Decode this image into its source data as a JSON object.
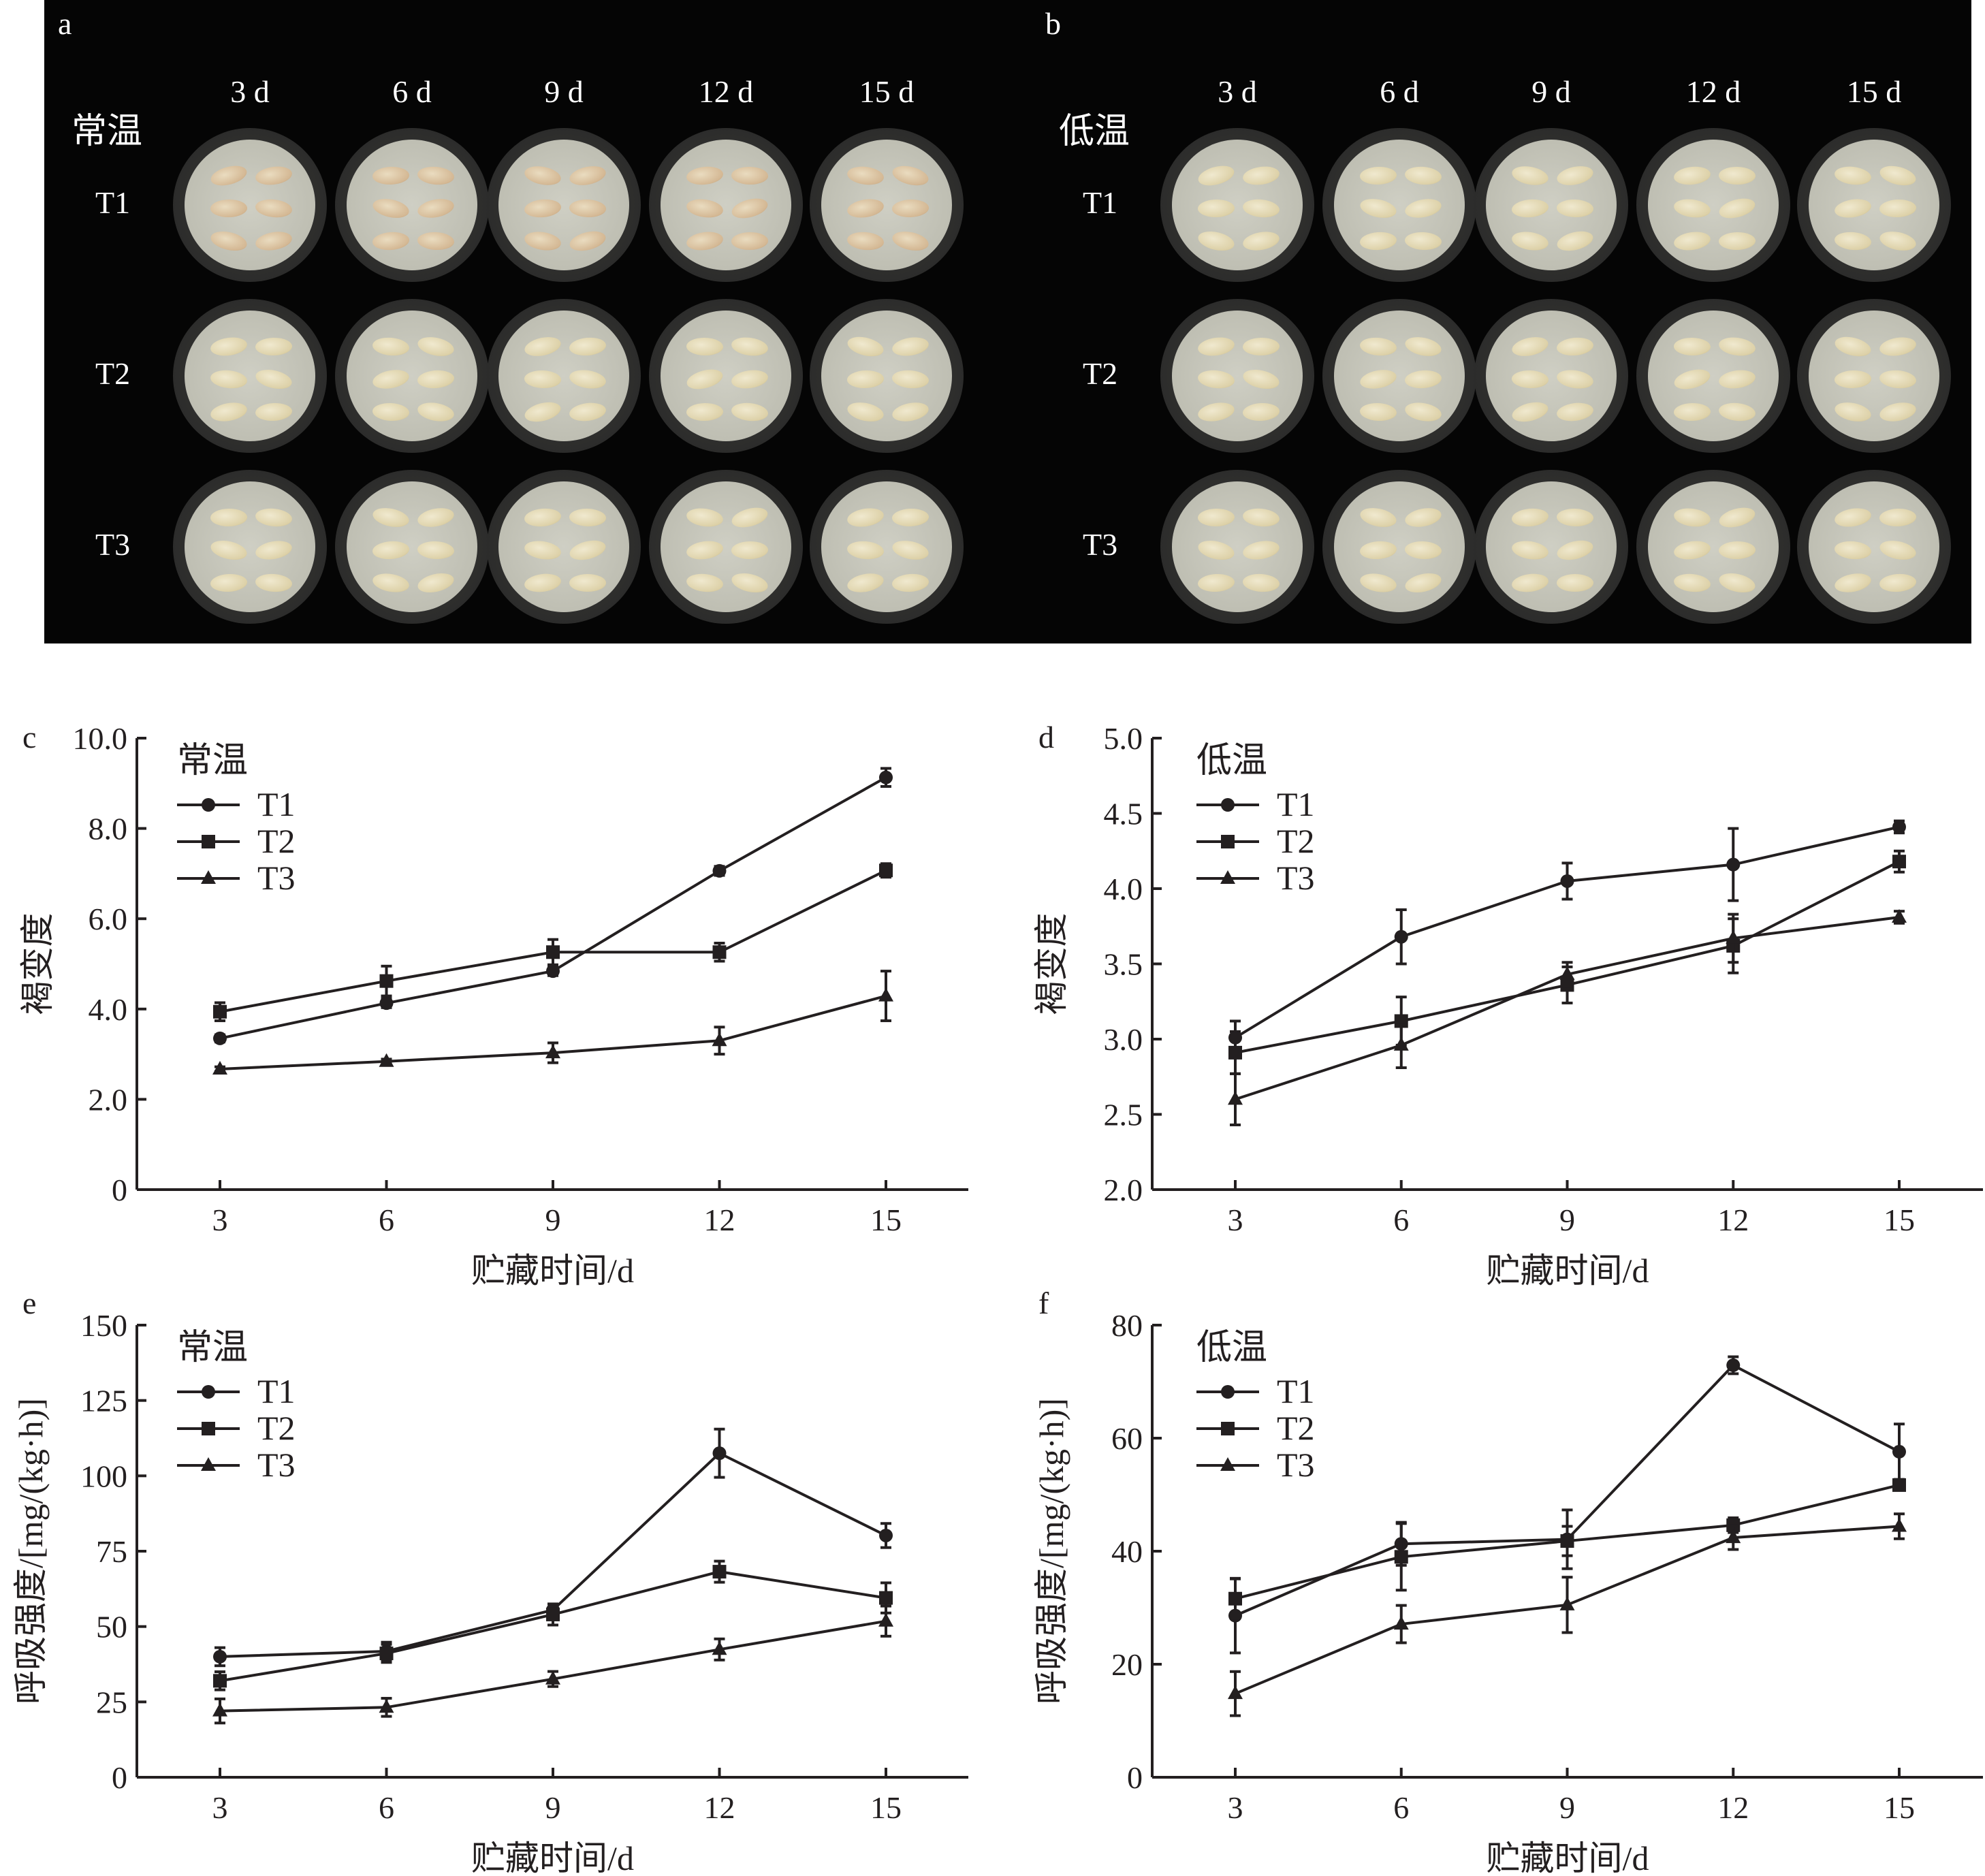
{
  "photo_panels": [
    {
      "letter": "a",
      "condition": "常温",
      "days": [
        "3 d",
        "6 d",
        "9 d",
        "12 d",
        "15 d"
      ],
      "rows": [
        "T1",
        "T2",
        "T3"
      ]
    },
    {
      "letter": "b",
      "condition": "低温",
      "days": [
        "3 d",
        "6 d",
        "9 d",
        "12 d",
        "15 d"
      ],
      "rows": [
        "T1",
        "T2",
        "T3"
      ]
    }
  ],
  "chart_data": [
    {
      "panel": "c",
      "type": "line",
      "legend_title": "常温",
      "xlabel": "贮藏时间/d",
      "ylabel": "褐变度",
      "x": [
        3,
        6,
        9,
        12,
        15
      ],
      "xticks": [
        "3",
        "6",
        "9",
        "12",
        "15"
      ],
      "ylim": [
        0,
        10
      ],
      "yticks": [
        "0",
        "2.0",
        "4.0",
        "6.0",
        "8.0",
        "10.0"
      ],
      "ytick_values": [
        0,
        2,
        4,
        6,
        8,
        10
      ],
      "grid": false,
      "legend": "top-left",
      "series": [
        {
          "name": "T1",
          "marker": "circle",
          "values": [
            3.35,
            4.13,
            4.84,
            7.06,
            9.13
          ],
          "errors": [
            0.08,
            0.1,
            0.1,
            0.1,
            0.2
          ]
        },
        {
          "name": "T2",
          "marker": "square",
          "values": [
            3.94,
            4.62,
            5.26,
            5.26,
            7.07
          ],
          "errors": [
            0.2,
            0.33,
            0.28,
            0.2,
            0.15
          ]
        },
        {
          "name": "T3",
          "marker": "triangle",
          "values": [
            2.67,
            2.84,
            3.03,
            3.3,
            4.29
          ],
          "errors": [
            0.05,
            0.05,
            0.22,
            0.3,
            0.55
          ]
        }
      ]
    },
    {
      "panel": "d",
      "type": "line",
      "legend_title": "低温",
      "xlabel": "贮藏时间/d",
      "ylabel": "褐变度",
      "x": [
        3,
        6,
        9,
        12,
        15
      ],
      "xticks": [
        "3",
        "6",
        "9",
        "12",
        "15"
      ],
      "ylim": [
        2,
        5
      ],
      "yticks": [
        "2.0",
        "2.5",
        "3.0",
        "3.5",
        "4.0",
        "4.5",
        "5.0"
      ],
      "ytick_values": [
        2,
        2.5,
        3,
        3.5,
        4,
        4.5,
        5
      ],
      "grid": false,
      "legend": "top-left",
      "series": [
        {
          "name": "T1",
          "marker": "circle",
          "values": [
            3.01,
            3.68,
            4.05,
            4.16,
            4.41
          ],
          "errors": [
            0.11,
            0.18,
            0.12,
            0.24,
            0.04
          ]
        },
        {
          "name": "T2",
          "marker": "square",
          "values": [
            2.91,
            3.12,
            3.36,
            3.62,
            4.18
          ],
          "errors": [
            0.14,
            0.16,
            0.12,
            0.18,
            0.07
          ]
        },
        {
          "name": "T3",
          "marker": "triangle",
          "values": [
            2.6,
            2.96,
            3.43,
            3.67,
            3.81
          ],
          "errors": [
            0.17,
            0.15,
            0.08,
            0.16,
            0.04
          ]
        }
      ]
    },
    {
      "panel": "e",
      "type": "line",
      "legend_title": "常温",
      "xlabel": "贮藏时间/d",
      "ylabel": "呼吸强度/[mg/(kg·h)]",
      "x": [
        3,
        6,
        9,
        12,
        15
      ],
      "xticks": [
        "3",
        "6",
        "9",
        "12",
        "15"
      ],
      "ylim": [
        0,
        150
      ],
      "yticks": [
        "0",
        "25",
        "50",
        "75",
        "100",
        "125",
        "150"
      ],
      "ytick_values": [
        0,
        25,
        50,
        75,
        100,
        125,
        150
      ],
      "grid": false,
      "legend": "top-left",
      "series": [
        {
          "name": "T1",
          "marker": "circle",
          "values": [
            40.0,
            41.8,
            55.5,
            107.5,
            80.2
          ],
          "errors": [
            3,
            3,
            2,
            8,
            4
          ]
        },
        {
          "name": "T2",
          "marker": "square",
          "values": [
            32.0,
            41.1,
            54.0,
            68.2,
            59.5
          ],
          "errors": [
            3,
            3,
            3.5,
            3.5,
            5
          ]
        },
        {
          "name": "T3",
          "marker": "triangle",
          "values": [
            22.0,
            23.2,
            32.6,
            42.4,
            51.8
          ],
          "errors": [
            4,
            3,
            2.5,
            3.5,
            5
          ]
        }
      ]
    },
    {
      "panel": "f",
      "type": "line",
      "legend_title": "低温",
      "xlabel": "贮藏时间/d",
      "ylabel": "呼吸强度/[mg/(kg·h)]",
      "x": [
        3,
        6,
        9,
        12,
        15
      ],
      "xticks": [
        "3",
        "6",
        "9",
        "12",
        "15"
      ],
      "ylim": [
        0,
        80
      ],
      "yticks": [
        "0",
        "20",
        "40",
        "60",
        "80"
      ],
      "ytick_values": [
        0,
        20,
        40,
        60,
        80
      ],
      "grid": false,
      "legend": "top-left",
      "series": [
        {
          "name": "T1",
          "marker": "circle",
          "values": [
            28.6,
            41.3,
            42.1,
            72.9,
            57.6
          ],
          "errors": [
            6.6,
            3.8,
            5.2,
            1.5,
            4.9
          ]
        },
        {
          "name": "T2",
          "marker": "square",
          "values": [
            31.6,
            39.0,
            41.8,
            44.6,
            51.7
          ],
          "errors": [
            3.5,
            5.9,
            2.6,
            1.3,
            0.8
          ]
        },
        {
          "name": "T3",
          "marker": "triangle",
          "values": [
            14.8,
            27.1,
            30.5,
            42.4,
            44.4
          ],
          "errors": [
            3.9,
            3.3,
            4.9,
            2.1,
            2.2
          ]
        }
      ]
    }
  ]
}
